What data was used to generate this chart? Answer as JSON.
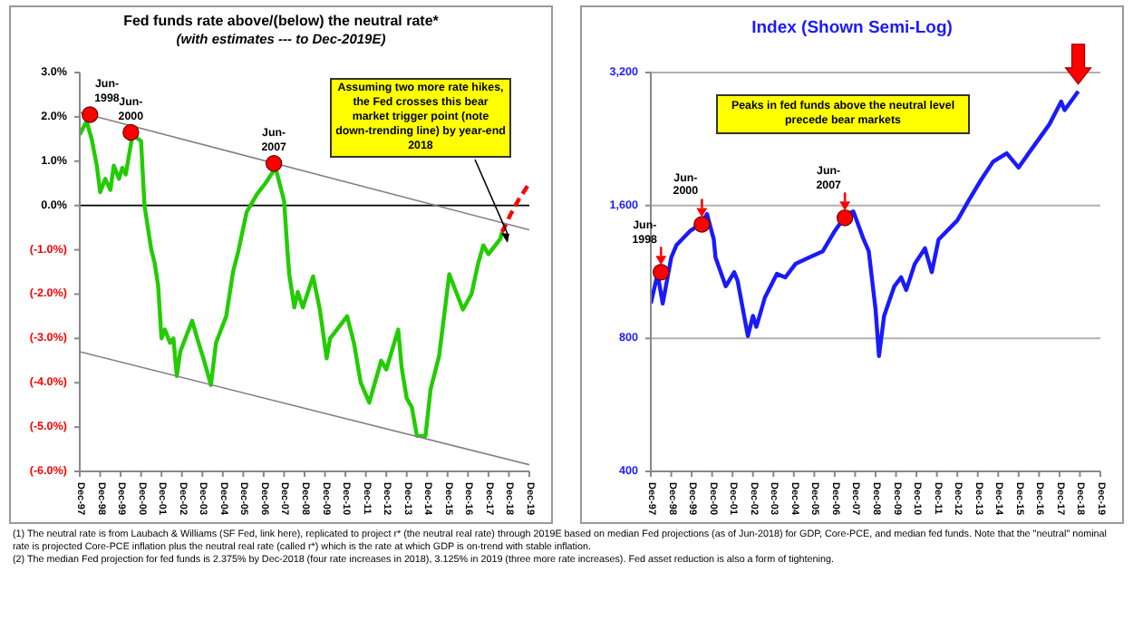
{
  "chart_data": [
    {
      "type": "line",
      "title": "Fed funds rate above/(below) the neutral rate*",
      "subtitle": "(with estimates --- to Dec-2019E)",
      "xlim": [
        "1997-12",
        "2019-12"
      ],
      "xticks": [
        {
          "value": "1997-12",
          "label": "Dec-97"
        },
        {
          "value": "1998-12",
          "label": "Dec-98"
        },
        {
          "value": "1999-12",
          "label": "Dec-99"
        },
        {
          "value": "2000-12",
          "label": "Dec-00"
        },
        {
          "value": "2001-12",
          "label": "Dec-01"
        },
        {
          "value": "2002-12",
          "label": "Dec-02"
        },
        {
          "value": "2003-12",
          "label": "Dec-03"
        },
        {
          "value": "2004-12",
          "label": "Dec-04"
        },
        {
          "value": "2005-12",
          "label": "Dec-05"
        },
        {
          "value": "2006-12",
          "label": "Dec-06"
        },
        {
          "value": "2007-12",
          "label": "Dec-07"
        },
        {
          "value": "2008-12",
          "label": "Dec-08"
        },
        {
          "value": "2009-12",
          "label": "Dec-09"
        },
        {
          "value": "2010-12",
          "label": "Dec-10"
        },
        {
          "value": "2011-12",
          "label": "Dec-11"
        },
        {
          "value": "2012-12",
          "label": "Dec-12"
        },
        {
          "value": "2013-12",
          "label": "Dec-13"
        },
        {
          "value": "2014-12",
          "label": "Dec-14"
        },
        {
          "value": "2015-12",
          "label": "Dec-15"
        },
        {
          "value": "2016-12",
          "label": "Dec-16"
        },
        {
          "value": "2017-12",
          "label": "Dec-17"
        },
        {
          "value": "2018-12",
          "label": "Dec-18"
        },
        {
          "value": "2019-12",
          "label": "Dec-19"
        }
      ],
      "ylim": [
        -6,
        3
      ],
      "yticks": [
        {
          "value": 3,
          "label": "3.0%"
        },
        {
          "value": 2,
          "label": "2.0%"
        },
        {
          "value": 1,
          "label": "1.0%"
        },
        {
          "value": 0,
          "label": "0.0%"
        },
        {
          "value": -1,
          "label": "(-1.0%)"
        },
        {
          "value": -2,
          "label": "(-2.0%)"
        },
        {
          "value": -3,
          "label": "(-3.0%)"
        },
        {
          "value": -4,
          "label": "(-4.0%)"
        },
        {
          "value": -5,
          "label": "(-5.0%)"
        },
        {
          "value": -6,
          "label": "(-6.0%)"
        }
      ],
      "grid": false,
      "ref_lines": [
        {
          "axis": "y",
          "value": 0,
          "color": "#000000"
        }
      ],
      "series": [
        {
          "color": "#22cc00",
          "x": [
            "1997-12",
            "1998-04",
            "1998-07",
            "1998-10",
            "1998-12",
            "1999-03",
            "1999-06",
            "1999-08",
            "1999-11",
            "2000-01",
            "2000-03",
            "2000-07",
            "2000-12",
            "2001-02",
            "2001-06",
            "2001-08",
            "2001-10",
            "2001-12",
            "2002-02",
            "2002-05",
            "2002-07",
            "2002-09",
            "2002-11",
            "2003-06",
            "2003-09",
            "2004-01",
            "2004-05",
            "2004-08",
            "2005-02",
            "2005-06",
            "2005-09",
            "2006-02",
            "2006-08",
            "2007-01",
            "2007-07",
            "2007-12",
            "2008-02",
            "2008-03",
            "2008-06",
            "2008-08",
            "2008-11",
            "2009-05",
            "2009-09",
            "2010-01",
            "2010-03",
            "2011-01",
            "2011-05",
            "2011-09",
            "2012-02",
            "2012-09",
            "2012-12",
            "2013-07",
            "2013-09",
            "2013-12",
            "2014-03",
            "2014-06",
            "2014-11",
            "2015-02",
            "2015-07",
            "2016-01",
            "2016-09",
            "2017-02",
            "2017-06",
            "2017-09",
            "2017-12",
            "2018-03",
            "2018-07",
            "2018-08"
          ],
          "values": [
            1.6,
            1.9,
            1.5,
            0.9,
            0.3,
            0.6,
            0.35,
            0.9,
            0.6,
            0.85,
            0.7,
            1.6,
            1.45,
            0.0,
            -1.0,
            -1.3,
            -1.8,
            -3.0,
            -2.8,
            -3.1,
            -3.0,
            -3.85,
            -3.3,
            -2.6,
            -3.0,
            -3.5,
            -4.05,
            -3.1,
            -2.5,
            -1.5,
            -1.05,
            -0.15,
            0.25,
            0.5,
            0.85,
            0.1,
            -1.05,
            -1.55,
            -2.3,
            -1.95,
            -2.3,
            -1.6,
            -2.35,
            -3.45,
            -3.0,
            -2.5,
            -3.1,
            -4.0,
            -4.45,
            -3.5,
            -3.7,
            -2.8,
            -3.65,
            -4.35,
            -4.55,
            -5.2,
            -5.2,
            -4.15,
            -3.4,
            -1.55,
            -2.35,
            -2.0,
            -1.3,
            -0.9,
            -1.1,
            -0.95,
            -0.75,
            -0.6
          ]
        },
        {
          "color": "#ff0000",
          "line_style": "dashed",
          "x": [
            "2018-08",
            "2019-01",
            "2019-06",
            "2019-12"
          ],
          "values": [
            -0.6,
            -0.2,
            0.15,
            0.5
          ]
        },
        {
          "color": "#808080",
          "x": [
            "1997-12",
            "2019-12"
          ],
          "values": [
            2.1,
            -0.55
          ]
        },
        {
          "color": "#808080",
          "x": [
            "1997-12",
            "2019-12"
          ],
          "values": [
            -3.3,
            -5.85
          ]
        },
        {
          "type": "scatter",
          "color": "#ff0000",
          "marker": "circle",
          "x": [
            "1998-06",
            "2000-06",
            "2007-06"
          ],
          "values": [
            2.05,
            1.65,
            0.95
          ]
        }
      ],
      "annotations": [
        {
          "text": "Jun-1998",
          "x": "1998-06",
          "y": 2.05
        },
        {
          "text": "Jun-2000",
          "x": "2000-06",
          "y": 1.65
        },
        {
          "text": "Jun-2007",
          "x": "2007-06",
          "y": 0.95
        },
        "Assuming two more rate hikes, the Fed crosses this bear market trigger point (note down-trending line) by year-end 2018",
        "(1)  The neutral rate is from Laubach & Williams (SF Fed, link here), replicated to project r* (the neutral real rate) through 2019E based on median Fed projections (as of Jun-2018) for GDP, Core-PCE, and median fed funds. Note that the \"neutral\" nominal rate is projected Core-PCE inflation plus the neutral real rate (called r*) which is the rate at which GDP is on-trend with stable inflation.",
        "(2)  The median Fed projection for fed funds is 2.375% by Dec-2018 (four rate increases in 2018), 3.125% in 2019 (three more rate increases). Fed asset reduction is also a form of tightening."
      ]
    },
    {
      "type": "line",
      "title": "Index (Shown Semi-Log)",
      "log": "y",
      "xlim": [
        "1997-12",
        "2019-12"
      ],
      "xticks": [
        {
          "value": "1997-12",
          "label": "Dec-97"
        },
        {
          "value": "1998-12",
          "label": "Dec-98"
        },
        {
          "value": "1999-12",
          "label": "Dec-99"
        },
        {
          "value": "2000-12",
          "label": "Dec-00"
        },
        {
          "value": "2001-12",
          "label": "Dec-01"
        },
        {
          "value": "2002-12",
          "label": "Dec-02"
        },
        {
          "value": "2003-12",
          "label": "Dec-03"
        },
        {
          "value": "2004-12",
          "label": "Dec-04"
        },
        {
          "value": "2005-12",
          "label": "Dec-05"
        },
        {
          "value": "2006-12",
          "label": "Dec-06"
        },
        {
          "value": "2007-12",
          "label": "Dec-07"
        },
        {
          "value": "2008-12",
          "label": "Dec-08"
        },
        {
          "value": "2009-12",
          "label": "Dec-09"
        },
        {
          "value": "2010-12",
          "label": "Dec-10"
        },
        {
          "value": "2011-12",
          "label": "Dec-11"
        },
        {
          "value": "2012-12",
          "label": "Dec-12"
        },
        {
          "value": "2013-12",
          "label": "Dec-13"
        },
        {
          "value": "2014-12",
          "label": "Dec-14"
        },
        {
          "value": "2015-12",
          "label": "Dec-15"
        },
        {
          "value": "2016-12",
          "label": "Dec-16"
        },
        {
          "value": "2017-12",
          "label": "Dec-17"
        },
        {
          "value": "2018-12",
          "label": "Dec-18"
        },
        {
          "value": "2019-12",
          "label": "Dec-19"
        }
      ],
      "ylim": [
        400,
        3200
      ],
      "yticks": [
        {
          "value": 400,
          "label": "400"
        },
        {
          "value": 800,
          "label": "800"
        },
        {
          "value": 1600,
          "label": "1,600"
        },
        {
          "value": 3200,
          "label": "3,200"
        }
      ],
      "grid": "y",
      "series": [
        {
          "color": "#1a1aff",
          "x": [
            "1997-12",
            "1998-04",
            "1998-07",
            "1998-12",
            "1999-03",
            "1999-11",
            "2000-06",
            "2000-09",
            "2001-01",
            "2001-02",
            "2001-08",
            "2002-01",
            "2002-03",
            "2002-09",
            "2002-12",
            "2003-02",
            "2003-07",
            "2004-02",
            "2004-07",
            "2005-01",
            "2005-09",
            "2006-05",
            "2006-12",
            "2007-07",
            "2007-11",
            "2008-05",
            "2008-08",
            "2008-12",
            "2009-02",
            "2009-05",
            "2009-11",
            "2010-03",
            "2010-06",
            "2010-11",
            "2011-05",
            "2011-09",
            "2012-01",
            "2012-12",
            "2013-07",
            "2014-02",
            "2014-09",
            "2015-05",
            "2015-12",
            "2016-07",
            "2017-06",
            "2018-01",
            "2018-03",
            "2018-11"
          ],
          "values": [
            960,
            1120,
            960,
            1220,
            1300,
            1400,
            1460,
            1530,
            1340,
            1220,
            1050,
            1130,
            1080,
            810,
            900,
            850,
            990,
            1120,
            1100,
            1180,
            1220,
            1260,
            1400,
            1530,
            1550,
            1340,
            1260,
            930,
            730,
            900,
            1050,
            1100,
            1030,
            1180,
            1280,
            1130,
            1340,
            1480,
            1650,
            1830,
            2010,
            2100,
            1950,
            2130,
            2440,
            2750,
            2630,
            2900
          ]
        },
        {
          "type": "scatter",
          "color": "#ff0000",
          "marker": "circle",
          "x": [
            "1998-06",
            "2000-06",
            "2007-06"
          ],
          "values": [
            1130,
            1450,
            1500
          ]
        }
      ],
      "annotations": [
        {
          "text": "Jun-1998",
          "x": "1998-06",
          "y": 1130
        },
        {
          "text": "Jun-2000",
          "x": "2000-06",
          "y": 1450
        },
        {
          "text": "Jun-2007",
          "x": "2007-06",
          "y": 1500
        },
        "Peaks in fed funds above the neutral level precede bear markets"
      ]
    }
  ]
}
